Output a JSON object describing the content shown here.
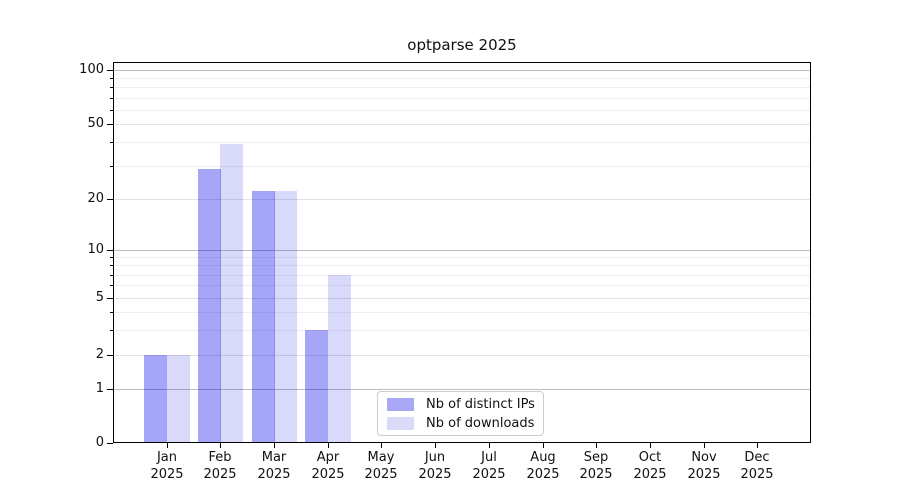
{
  "chart_data": {
    "type": "bar",
    "title": "optparse 2025",
    "categories": [
      "Jan",
      "Feb",
      "Mar",
      "Apr",
      "May",
      "Jun",
      "Jul",
      "Aug",
      "Sep",
      "Oct",
      "Nov",
      "Dec"
    ],
    "year": "2025",
    "series": [
      {
        "name": "Nb of distinct IPs",
        "swatch_color": "#a8a8f7",
        "fill_rgba": "rgba(0,0,235,0.35)",
        "values": [
          2,
          29,
          22,
          3,
          0,
          0,
          0,
          0,
          0,
          0,
          0,
          0
        ]
      },
      {
        "name": "Nb of downloads",
        "swatch_color": "#dadaf9",
        "fill_rgba": "rgba(0,0,220,0.15)",
        "values": [
          2,
          39,
          22,
          7,
          0,
          0,
          0,
          0,
          0,
          0,
          0,
          0
        ]
      }
    ],
    "y_axis": {
      "scale": "log above 1, linear 0-1",
      "tick_labels": [
        "100",
        "50",
        "20",
        "10",
        "5",
        "2",
        "1",
        "0"
      ],
      "tick_values": [
        100,
        50,
        20,
        10,
        5,
        2,
        1,
        0
      ],
      "minor_gridlines": [
        3,
        4,
        6,
        7,
        8,
        9,
        30,
        40,
        60,
        70,
        80,
        90
      ],
      "range": [
        0,
        111
      ]
    },
    "legend": {
      "items": [
        "Nb of distinct IPs",
        "Nb of downloads"
      ],
      "position": "inside plot, lower center-left"
    },
    "grid": {
      "decade_color": "#bdbdbd",
      "labeled_color": "#e2e2e2",
      "minor_color": "#efefef"
    },
    "xlabel": "",
    "ylabel": ""
  }
}
